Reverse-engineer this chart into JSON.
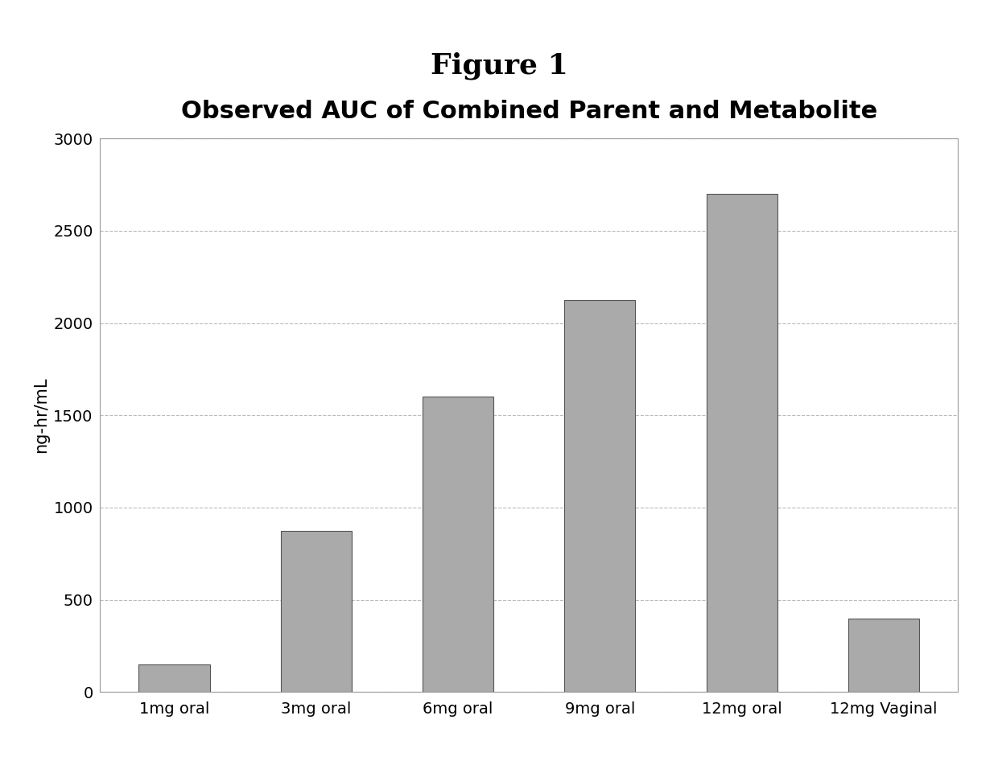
{
  "title": "Observed AUC of Combined Parent and Metabolite",
  "figure_title": "Figure 1",
  "categories": [
    "1mg oral",
    "3mg oral",
    "6mg oral",
    "9mg oral",
    "12mg oral",
    "12mg Vaginal"
  ],
  "values": [
    150,
    875,
    1600,
    2125,
    2700,
    400
  ],
  "bar_color": "#aaaaaa",
  "bar_edge_color": "#555555",
  "ylabel": "ng-hr/mL",
  "ylim": [
    0,
    3000
  ],
  "yticks": [
    0,
    500,
    1000,
    1500,
    2000,
    2500,
    3000
  ],
  "background_color": "#ffffff",
  "chart_bg": "#ffffff",
  "title_fontsize": 22,
  "figure_title_fontsize": 26,
  "axis_label_fontsize": 15,
  "tick_fontsize": 14,
  "bar_width": 0.5,
  "grid_color": "#bbbbbb",
  "grid_linestyle": "--"
}
